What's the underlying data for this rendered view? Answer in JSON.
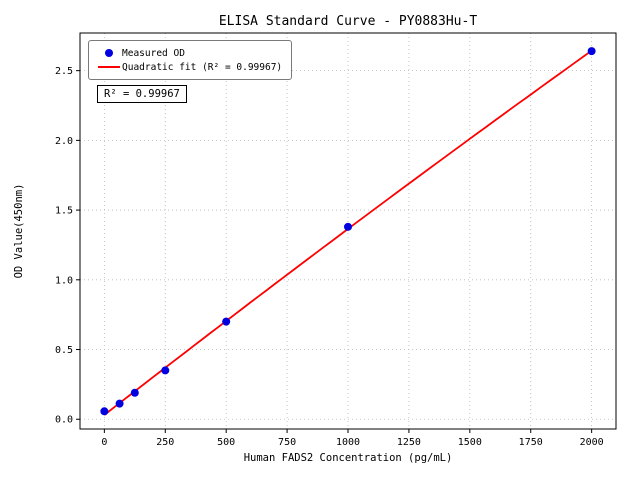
{
  "chart_data": {
    "type": "scatter",
    "title": "ELISA Standard Curve - PY0883Hu-T",
    "xlabel": "Human FADS2 Concentration (pg/mL)",
    "ylabel": "OD Value(450nm)",
    "xlim": [
      -100,
      2100
    ],
    "ylim": [
      -0.07,
      2.77
    ],
    "xticks": [
      0,
      250,
      500,
      750,
      1000,
      1250,
      1500,
      1750,
      2000
    ],
    "yticks": [
      0.0,
      0.5,
      1.0,
      1.5,
      2.0,
      2.5
    ],
    "grid": true,
    "legend_position": "upper-left",
    "series": [
      {
        "name": "Measured OD",
        "type": "scatter",
        "color": "#0000e0",
        "points": [
          {
            "x": 0,
            "y": 0.057
          },
          {
            "x": 62.5,
            "y": 0.112
          },
          {
            "x": 125,
            "y": 0.19
          },
          {
            "x": 250,
            "y": 0.35
          },
          {
            "x": 500,
            "y": 0.7
          },
          {
            "x": 1000,
            "y": 1.38
          },
          {
            "x": 2000,
            "y": 2.64
          }
        ]
      },
      {
        "name": "Quadratic fit (R² = 0.99967)",
        "type": "quadratic-fit",
        "color": "#ff0000"
      }
    ],
    "annotation": "R² = 0.99967"
  }
}
